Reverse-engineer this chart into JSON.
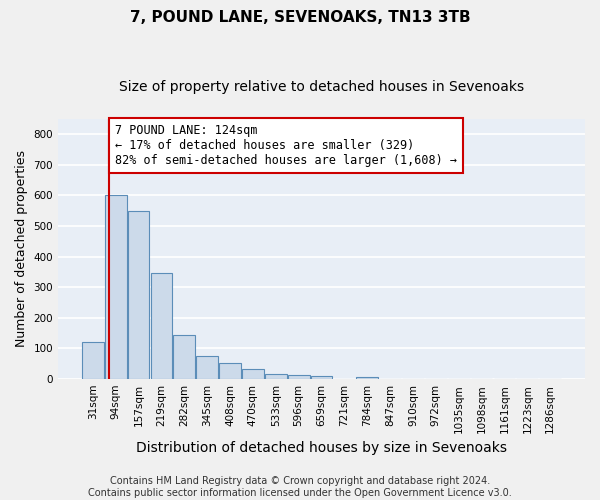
{
  "title": "7, POUND LANE, SEVENOAKS, TN13 3TB",
  "subtitle": "Size of property relative to detached houses in Sevenoaks",
  "xlabel": "Distribution of detached houses by size in Sevenoaks",
  "ylabel": "Number of detached properties",
  "categories": [
    "31sqm",
    "94sqm",
    "157sqm",
    "219sqm",
    "282sqm",
    "345sqm",
    "408sqm",
    "470sqm",
    "533sqm",
    "596sqm",
    "659sqm",
    "721sqm",
    "784sqm",
    "847sqm",
    "910sqm",
    "972sqm",
    "1035sqm",
    "1098sqm",
    "1161sqm",
    "1223sqm",
    "1286sqm"
  ],
  "bar_values": [
    120,
    600,
    550,
    345,
    143,
    75,
    52,
    32,
    15,
    12,
    10,
    0,
    7,
    0,
    0,
    0,
    0,
    0,
    0,
    0,
    0
  ],
  "bar_color": "#ccdaea",
  "bar_edge_color": "#5b8db8",
  "background_color": "#e8eef6",
  "grid_color": "#ffffff",
  "annotation_line1": "7 POUND LANE: 124sqm",
  "annotation_line2": "← 17% of detached houses are smaller (329)",
  "annotation_line3": "82% of semi-detached houses are larger (1,608) →",
  "annotation_box_edgecolor": "#cc0000",
  "red_line_color": "#cc0000",
  "property_line_x": 0.72,
  "ylim": [
    0,
    850
  ],
  "yticks": [
    0,
    100,
    200,
    300,
    400,
    500,
    600,
    700,
    800
  ],
  "footnote_line1": "Contains HM Land Registry data © Crown copyright and database right 2024.",
  "footnote_line2": "Contains public sector information licensed under the Open Government Licence v3.0.",
  "title_fontsize": 11,
  "subtitle_fontsize": 10,
  "xlabel_fontsize": 10,
  "ylabel_fontsize": 9,
  "tick_fontsize": 7.5,
  "annotation_fontsize": 8.5,
  "footnote_fontsize": 7
}
